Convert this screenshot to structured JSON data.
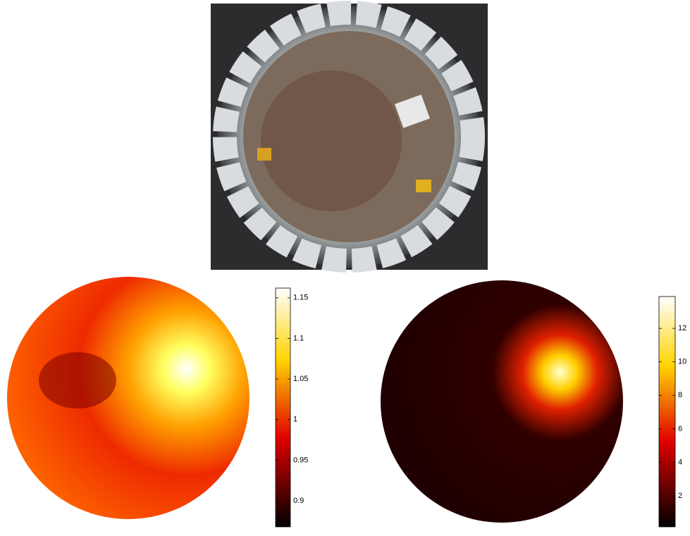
{
  "chart_data": [
    {
      "type": "heatmap",
      "clim": [
        0.868,
        1.162
      ],
      "cticks": [
        0.9,
        0.95,
        1,
        1.05,
        1.1,
        1.15
      ]
    },
    {
      "type": "heatmap",
      "clim": [
        0.15,
        13.9
      ],
      "cticks": [
        2,
        4,
        6,
        8,
        10,
        12
      ]
    }
  ]
}
